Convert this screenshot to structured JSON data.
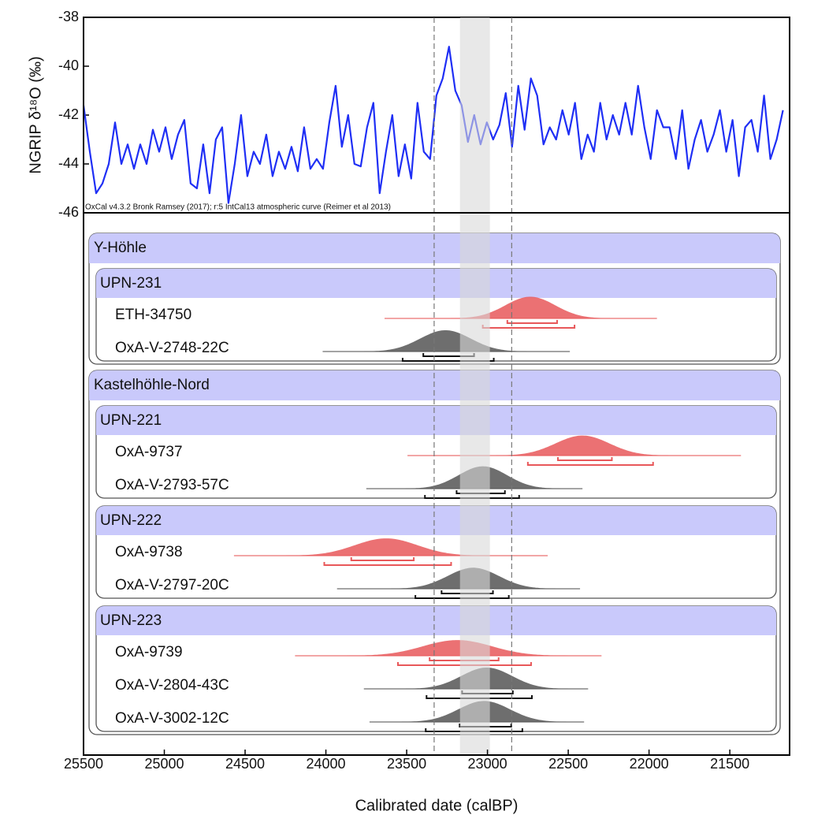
{
  "chart_data": [
    {
      "type": "line",
      "ylabel": "NGRIP δ¹⁸O (‰)",
      "note": "OxCal v4.3.2 Bronk Ramsey (2017); r:5 IntCal13 atmospheric curve (Reimer et al 2013)",
      "color": "#1f2ff5",
      "xlim": [
        25500,
        21130
      ],
      "ylim": [
        -46,
        -38
      ],
      "yticks": [
        -38,
        -40,
        -42,
        -44,
        -46
      ],
      "x": [
        25500,
        25461,
        25422,
        25383,
        25344,
        25305,
        25266,
        25227,
        25188,
        25149,
        25110,
        25071,
        25032,
        24993,
        24954,
        24915,
        24876,
        24837,
        24798,
        24759,
        24720,
        24681,
        24642,
        24603,
        24564,
        24525,
        24486,
        24447,
        24408,
        24369,
        24330,
        24291,
        24252,
        24213,
        24174,
        24135,
        24096,
        24057,
        24018,
        23979,
        23940,
        23901,
        23862,
        23823,
        23784,
        23745,
        23706,
        23667,
        23628,
        23589,
        23550,
        23511,
        23472,
        23433,
        23394,
        23355,
        23316,
        23277,
        23238,
        23199,
        23160,
        23121,
        23082,
        23043,
        23004,
        22965,
        22926,
        22887,
        22848,
        22809,
        22770,
        22731,
        22692,
        22653,
        22614,
        22575,
        22536,
        22497,
        22458,
        22419,
        22380,
        22341,
        22302,
        22263,
        22224,
        22185,
        22146,
        22107,
        22068,
        22029,
        21990,
        21951,
        21912,
        21873,
        21834,
        21795,
        21756,
        21717,
        21678,
        21639,
        21600,
        21561,
        21522,
        21483,
        21444,
        21405,
        21366,
        21327,
        21288,
        21249,
        21210,
        21171
      ],
      "values": [
        -41.6,
        -43.5,
        -45.2,
        -44.8,
        -44,
        -42.3,
        -44,
        -43.2,
        -44.2,
        -43.2,
        -44,
        -42.6,
        -43.5,
        -42.5,
        -43.8,
        -42.8,
        -42.2,
        -44.8,
        -45,
        -43.2,
        -45.2,
        -43,
        -42.5,
        -45.6,
        -44,
        -42,
        -44.5,
        -43.5,
        -44,
        -42.8,
        -44.5,
        -43.5,
        -44.2,
        -43.3,
        -44.3,
        -42.5,
        -44.2,
        -43.8,
        -44.2,
        -42.3,
        -40.8,
        -43.3,
        -42,
        -44,
        -44.1,
        -42.5,
        -41.5,
        -45.2,
        -43.5,
        -42,
        -44.5,
        -43.2,
        -44.6,
        -41.5,
        -43.5,
        -43.8,
        -41.2,
        -40.5,
        -39.2,
        -41,
        -41.6,
        -43.1,
        -42,
        -43.2,
        -42.3,
        -43,
        -42.4,
        -41.1,
        -43.3,
        -40.8,
        -42.6,
        -40.5,
        -41.2,
        -43.2,
        -42.5,
        -43,
        -41.8,
        -42.8,
        -41.5,
        -43.8,
        -42.8,
        -43.5,
        -41.5,
        -43,
        -42,
        -42.8,
        -41.5,
        -42.8,
        -40.8,
        -42.5,
        -43.8,
        -41.8,
        -42.5,
        -42.5,
        -43.8,
        -41.8,
        -44.2,
        -43,
        -42.2,
        -43.5,
        -42.8,
        -41.8,
        -43.5,
        -42.2,
        -44.5,
        -42.5,
        -42.2,
        -43.5,
        -41.2,
        -43.8,
        -43,
        -41.8
      ]
    },
    {
      "type": "oxcal",
      "xlabel": "Calibrated date (calBP)",
      "xlim": [
        25500,
        21130
      ],
      "xticks": [
        25500,
        25000,
        24500,
        24000,
        23500,
        23000,
        22500,
        22000,
        21500
      ],
      "dashed_lines": [
        23330,
        22850
      ],
      "band": [
        23170,
        22985
      ],
      "band_color": "#d9d9d9",
      "header_color": "#c9c9fb",
      "groups": [
        {
          "name": "Y-Höhle",
          "subgroups": [
            {
              "name": "UPN-231",
              "samples": [
                {
                  "name": "ETH-34750",
                  "color": "#e8585a",
                  "line": [
                    23637,
                    21951
                  ],
                  "peak": 22735,
                  "range68": [
                    22877,
                    22569
                  ],
                  "range95": [
                    23029,
                    22461
                  ]
                },
                {
                  "name": "OxA-V-2748-22C",
                  "color": "#555555",
                  "line": [
                    24020,
                    22490
                  ],
                  "peak": 23260,
                  "range68": [
                    23397,
                    23083
                  ],
                  "range95": [
                    23525,
                    22961
                  ]
                }
              ]
            }
          ]
        },
        {
          "name": "Kastelhöhle-Nord",
          "subgroups": [
            {
              "name": "UPN-221",
              "samples": [
                {
                  "name": "OxA-9737",
                  "color": "#e8585a",
                  "line": [
                    23495,
                    21431
                  ],
                  "peak": 22412,
                  "range68": [
                    22564,
                    22230
                  ],
                  "range95": [
                    22750,
                    21975
                  ]
                },
                {
                  "name": "OxA-V-2793-57C",
                  "color": "#555555",
                  "line": [
                    23750,
                    22412
                  ],
                  "peak": 23029,
                  "range68": [
                    23191,
                    22892
                  ],
                  "range95": [
                    23387,
                    22804
                  ]
                }
              ]
            },
            {
              "name": "UPN-222",
              "samples": [
                {
                  "name": "OxA-9738",
                  "color": "#e8585a",
                  "line": [
                    24569,
                    22627
                  ],
                  "peak": 23627,
                  "range68": [
                    23843,
                    23456
                  ],
                  "range95": [
                    24010,
                    23225
                  ]
                },
                {
                  "name": "OxA-V-2797-20C",
                  "color": "#555555",
                  "line": [
                    23931,
                    22427
                  ],
                  "peak": 23088,
                  "range68": [
                    23284,
                    22966
                  ],
                  "range95": [
                    23446,
                    22868
                  ]
                }
              ]
            },
            {
              "name": "UPN-223",
              "samples": [
                {
                  "name": "OxA-9739",
                  "color": "#e8585a",
                  "line": [
                    24191,
                    22294
                  ],
                  "peak": 23186,
                  "range68": [
                    23358,
                    22931
                  ],
                  "range95": [
                    23554,
                    22730
                  ]
                },
                {
                  "name": "OxA-V-2804-43C",
                  "color": "#555555",
                  "line": [
                    23765,
                    22377
                  ],
                  "peak": 23005,
                  "range68": [
                    23157,
                    22843
                  ],
                  "range95": [
                    23377,
                    22725
                  ]
                },
                {
                  "name": "OxA-V-3002-12C",
                  "color": "#555555",
                  "line": [
                    23730,
                    22402
                  ],
                  "peak": 23020,
                  "range68": [
                    23172,
                    22853
                  ],
                  "range95": [
                    23382,
                    22784
                  ]
                }
              ]
            }
          ]
        }
      ]
    }
  ]
}
